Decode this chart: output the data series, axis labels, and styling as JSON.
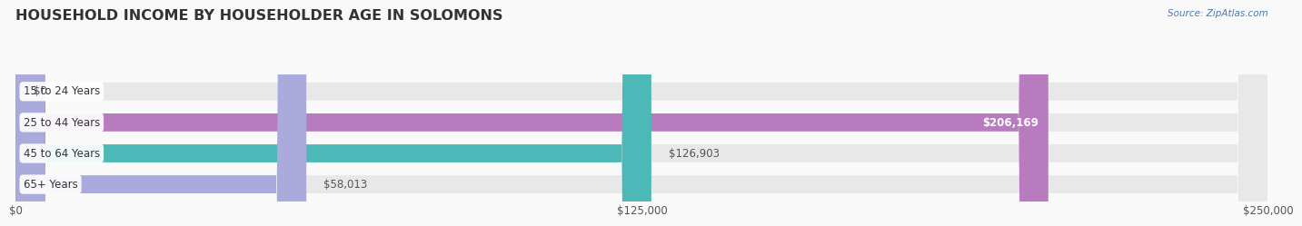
{
  "title": "HOUSEHOLD INCOME BY HOUSEHOLDER AGE IN SOLOMONS",
  "source": "Source: ZipAtlas.com",
  "categories": [
    "15 to 24 Years",
    "25 to 44 Years",
    "45 to 64 Years",
    "65+ Years"
  ],
  "values": [
    0,
    206169,
    126903,
    58013
  ],
  "bar_colors": [
    "#a8c4e0",
    "#b87bbf",
    "#4db8b8",
    "#aaaadd"
  ],
  "bar_bg_color": "#e8e8e8",
  "xlim": [
    0,
    250000
  ],
  "xticks": [
    0,
    125000,
    250000
  ],
  "xtick_labels": [
    "$0",
    "$125,000",
    "$250,000"
  ],
  "background_color": "#f9f9f9",
  "title_fontsize": 11.5,
  "bar_height": 0.58,
  "value_labels": [
    "$0",
    "$206,169",
    "$126,903",
    "$58,013"
  ]
}
